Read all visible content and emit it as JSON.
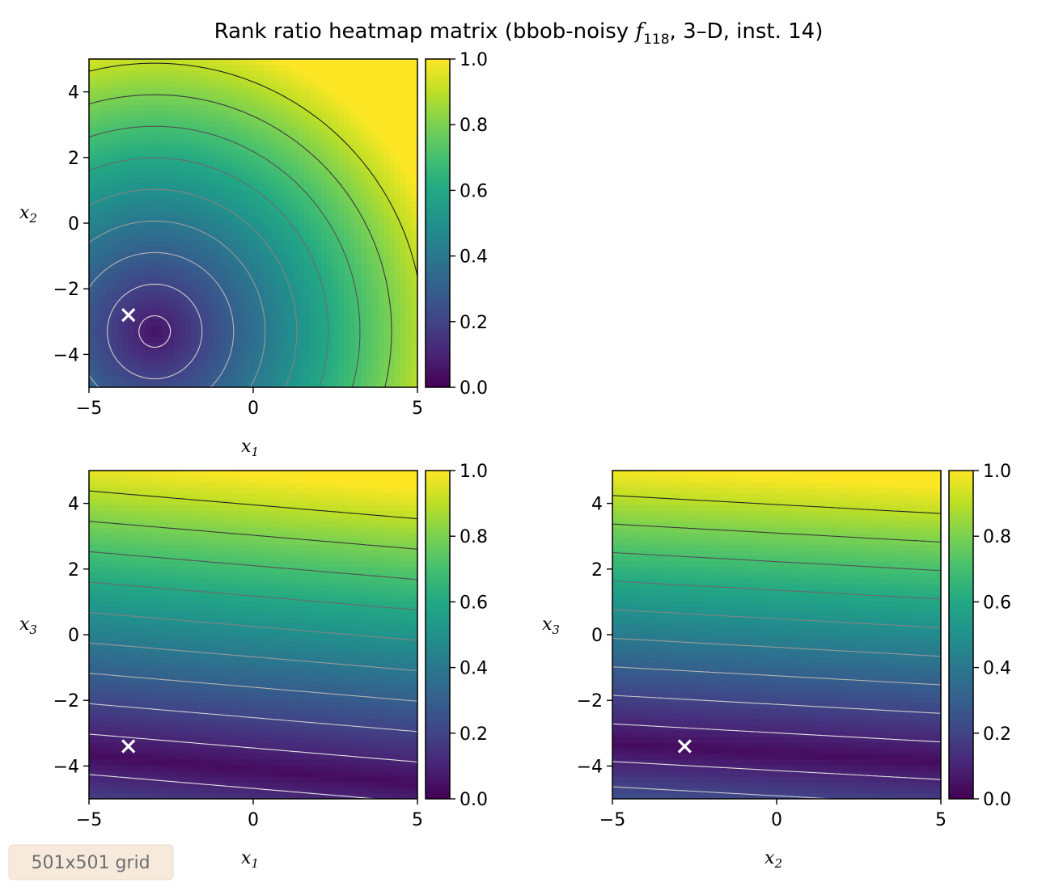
{
  "chart_data": {
    "type": "heatmap",
    "title": {
      "prefix": "Rank ratio heatmap matrix (bbob-noisy ",
      "func_symbol": "f",
      "func_subscript": "118",
      "suffix": ", 3–D, inst. 14)"
    },
    "colormap": "viridis",
    "color_range": [
      0.0,
      1.0
    ],
    "colorbar_ticks": [
      "0.0",
      "0.2",
      "0.4",
      "0.6",
      "0.8",
      "1.0"
    ],
    "axis_ticks": [
      "−5",
      "0",
      "5"
    ],
    "axis_tick_values": [
      -5,
      0,
      5
    ],
    "yaxis_ticks": [
      "−4",
      "−2",
      "0",
      "2",
      "4"
    ],
    "yaxis_tick_values": [
      -4,
      -2,
      0,
      2,
      4
    ],
    "panels": [
      {
        "id": "x1-x2",
        "xlabel": "x",
        "xlabel_sub": "1",
        "ylabel": "x",
        "ylabel_sub": "2",
        "xlim": [
          -5,
          5
        ],
        "ylim": [
          -5,
          5
        ],
        "optimum": [
          -3.8,
          -2.8
        ]
      },
      {
        "id": "x1-x3",
        "xlabel": "x",
        "xlabel_sub": "1",
        "ylabel": "x",
        "ylabel_sub": "3",
        "xlim": [
          -5,
          5
        ],
        "ylim": [
          -5,
          5
        ],
        "optimum": [
          -3.8,
          -3.4
        ]
      },
      {
        "id": "x2-x3",
        "xlabel": "x",
        "xlabel_sub": "2",
        "ylabel": "x",
        "ylabel_sub": "3",
        "xlim": [
          -5,
          5
        ],
        "ylim": [
          -5,
          5
        ],
        "optimum": [
          -2.8,
          -3.4
        ]
      }
    ],
    "grid_note": "501x501 grid"
  }
}
